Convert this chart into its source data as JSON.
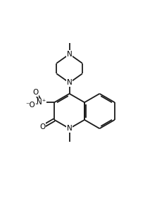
{
  "background_color": "#ffffff",
  "line_color": "#1a1a1a",
  "atom_bg_color": "#ffffff",
  "line_width": 1.3,
  "font_size": 7.5,
  "figsize": [
    2.23,
    2.85
  ],
  "dpi": 100,
  "xlim": [
    0,
    10
  ],
  "ylim": [
    0,
    13
  ],
  "r_ring": 1.15
}
